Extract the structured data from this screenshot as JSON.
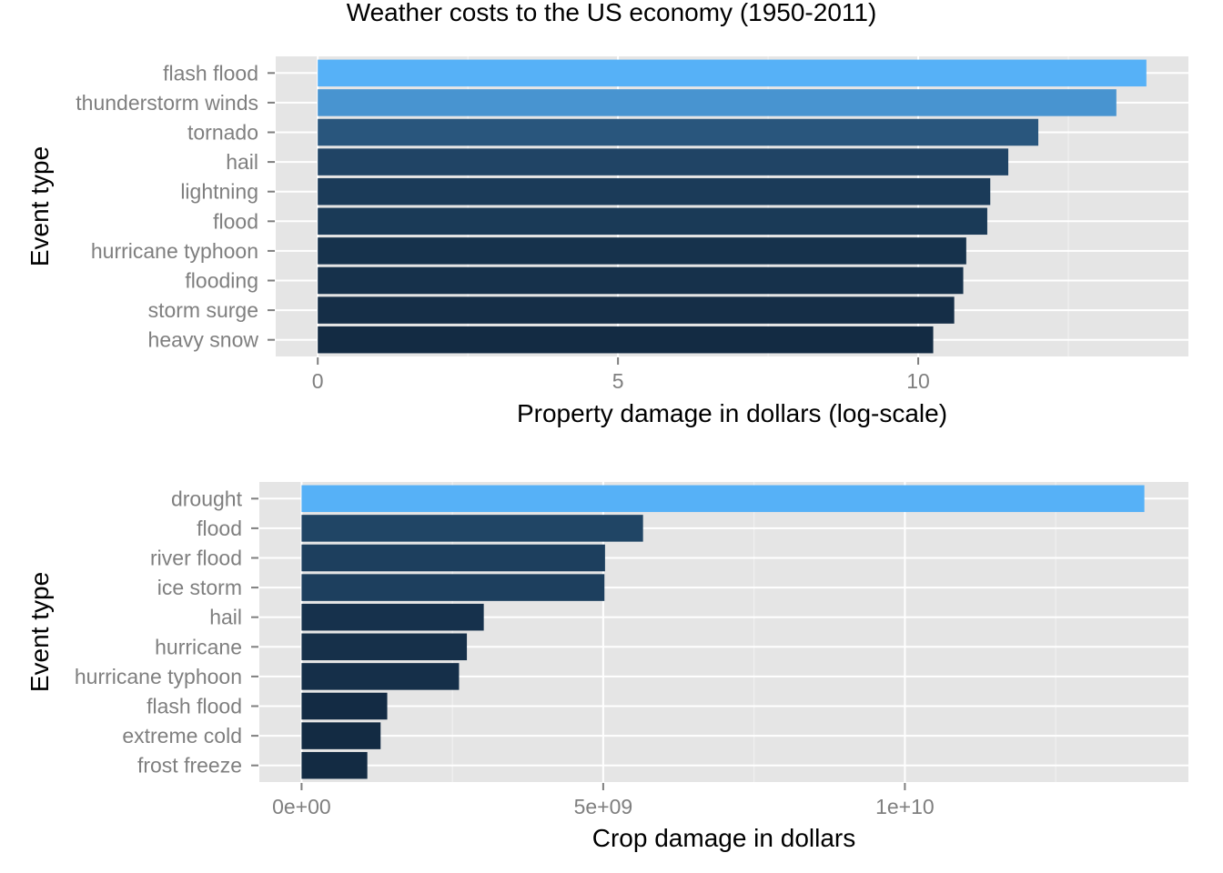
{
  "title": "Weather costs to the US economy (1950-2011)",
  "chart_data": [
    {
      "type": "bar",
      "orientation": "horizontal",
      "xlabel": "Property damage in dollars (log-scale)",
      "ylabel": "Event type",
      "xlim": [
        -0.7,
        14.5
      ],
      "x_ticks": [
        0,
        5,
        10
      ],
      "x_tick_labels": [
        "0",
        "5",
        "10"
      ],
      "grid": true,
      "categories": [
        "flash flood",
        "thunderstorm winds",
        "tornado",
        "hail",
        "lightning",
        "flood",
        "hurricane typhoon",
        "flooding",
        "storm surge",
        "heavy snow"
      ],
      "values": [
        13.8,
        13.3,
        12.0,
        11.5,
        11.2,
        11.15,
        10.8,
        10.75,
        10.6,
        10.25
      ],
      "color_scale": [
        "#132b43",
        "#56b1f7"
      ]
    },
    {
      "type": "bar",
      "orientation": "horizontal",
      "xlabel": "Crop damage in dollars",
      "ylabel": "Event type",
      "xlim": [
        -700000000,
        14700000000
      ],
      "x_ticks": [
        0,
        5000000000,
        10000000000
      ],
      "x_tick_labels": [
        "0e+00",
        "5e+09",
        "1e+10"
      ],
      "grid": true,
      "categories": [
        "drought",
        "flood",
        "river flood",
        "ice storm",
        "hail",
        "hurricane",
        "hurricane typhoon",
        "flash flood",
        "extreme cold",
        "frost freeze"
      ],
      "values": [
        13970000000,
        5660000000,
        5030000000,
        5020000000,
        3020000000,
        2740000000,
        2610000000,
        1420000000,
        1310000000,
        1090000000
      ],
      "color_scale": [
        "#132b43",
        "#56b1f7"
      ]
    }
  ]
}
